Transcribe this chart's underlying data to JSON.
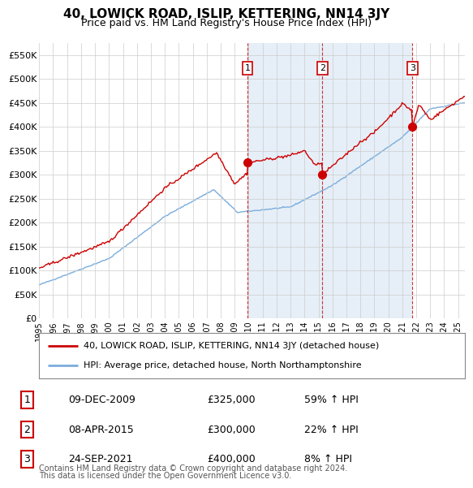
{
  "title": "40, LOWICK ROAD, ISLIP, KETTERING, NN14 3JY",
  "subtitle": "Price paid vs. HM Land Registry's House Price Index (HPI)",
  "title_fontsize": 11,
  "subtitle_fontsize": 9,
  "ylabel_ticks": [
    "£0",
    "£50K",
    "£100K",
    "£150K",
    "£200K",
    "£250K",
    "£300K",
    "£350K",
    "£400K",
    "£450K",
    "£500K",
    "£550K"
  ],
  "ytick_values": [
    0,
    50000,
    100000,
    150000,
    200000,
    250000,
    300000,
    350000,
    400000,
    450000,
    500000,
    550000
  ],
  "ylim": [
    0,
    575000
  ],
  "red_line_color": "#cc0000",
  "blue_line_color": "#7aaddc",
  "shade_color": "#dce9f5",
  "marker_color": "#cc0000",
  "vline_color": "#cc0000",
  "grid_color": "#cccccc",
  "bg_color": "#ffffff",
  "plot_bg_color": "#ffffff",
  "legend_label_red": "40, LOWICK ROAD, ISLIP, KETTERING, NN14 3JY (detached house)",
  "legend_label_blue": "HPI: Average price, detached house, North Northamptonshire",
  "transactions": [
    {
      "num": 1,
      "date_x": 2009.92,
      "price": 325000,
      "label": "1",
      "date_str": "09-DEC-2009",
      "price_str": "£325,000",
      "pct_str": "59% ↑ HPI"
    },
    {
      "num": 2,
      "date_x": 2015.27,
      "price": 300000,
      "label": "2",
      "date_str": "08-APR-2015",
      "price_str": "£300,000",
      "pct_str": "22% ↑ HPI"
    },
    {
      "num": 3,
      "date_x": 2021.73,
      "price": 400000,
      "label": "3",
      "date_str": "24-SEP-2021",
      "price_str": "£400,000",
      "pct_str": "8% ↑ HPI"
    }
  ],
  "footer_line1": "Contains HM Land Registry data © Crown copyright and database right 2024.",
  "footer_line2": "This data is licensed under the Open Government Licence v3.0.",
  "xtick_years": [
    1995,
    1996,
    1997,
    1998,
    1999,
    2000,
    2001,
    2002,
    2003,
    2004,
    2005,
    2006,
    2007,
    2008,
    2009,
    2010,
    2011,
    2012,
    2013,
    2014,
    2015,
    2016,
    2017,
    2018,
    2019,
    2020,
    2021,
    2022,
    2023,
    2024,
    2025
  ],
  "shade_x_start": 2009.92,
  "shade_x_end": 2021.73
}
